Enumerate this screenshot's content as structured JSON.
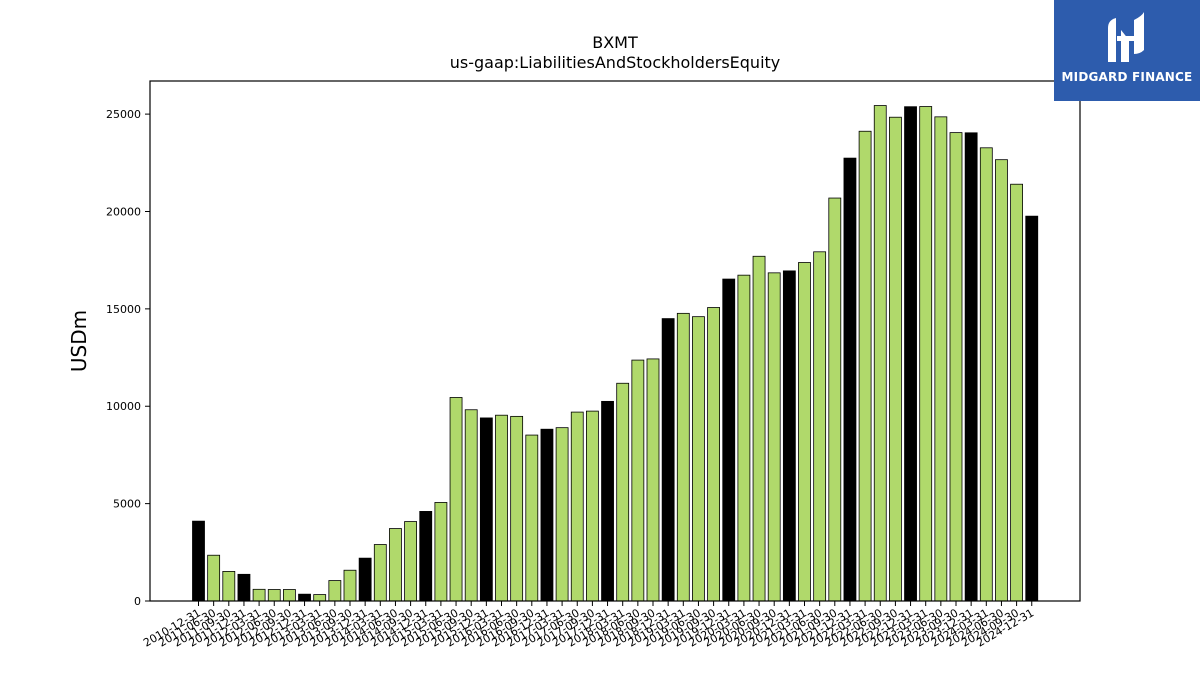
{
  "logo": {
    "text": "MIDGARD FINANCE",
    "icon": "midgard-logo-icon",
    "background": "#2d5cad"
  },
  "colors": {
    "green": "#b0d96b",
    "black": "#000000"
  },
  "chart_data": {
    "type": "bar",
    "title": "BXMT",
    "subtitle": "us-gaap:LiabilitiesAndStockholdersEquity",
    "xlabel": "",
    "ylabel": "USDm",
    "ylim": [
      0,
      26700
    ],
    "yticks": [
      0,
      5000,
      10000,
      15000,
      20000,
      25000
    ],
    "grid": false,
    "categories": [
      "2010-12-31",
      "2011-06-30",
      "2011-09-30",
      "2011-12-31",
      "2012-03-31",
      "2012-06-30",
      "2012-09-30",
      "2012-12-31",
      "2013-03-31",
      "2013-06-30",
      "2013-09-30",
      "2013-12-31",
      "2014-03-31",
      "2014-06-30",
      "2014-09-30",
      "2014-12-31",
      "2015-03-31",
      "2015-06-30",
      "2015-09-30",
      "2015-12-31",
      "2016-03-31",
      "2016-06-30",
      "2016-09-30",
      "2016-12-31",
      "2017-03-31",
      "2017-06-30",
      "2017-09-30",
      "2017-12-31",
      "2018-03-31",
      "2018-06-30",
      "2018-09-30",
      "2018-12-31",
      "2019-03-31",
      "2019-06-30",
      "2019-09-30",
      "2019-12-31",
      "2020-03-31",
      "2020-06-30",
      "2020-09-30",
      "2020-12-31",
      "2021-03-31",
      "2021-06-30",
      "2021-09-30",
      "2021-12-31",
      "2022-03-31",
      "2022-06-30",
      "2022-09-30",
      "2022-12-31",
      "2023-03-31",
      "2023-06-30",
      "2023-09-30",
      "2023-12-31",
      "2024-03-31",
      "2024-06-30",
      "2024-09-30",
      "2024-12-31"
    ],
    "values": [
      4100,
      2350,
      1520,
      1370,
      600,
      590,
      590,
      350,
      330,
      1050,
      1580,
      2200,
      2900,
      3720,
      4080,
      4600,
      5060,
      10450,
      9820,
      9400,
      9540,
      9480,
      8520,
      8820,
      8900,
      9700,
      9750,
      10250,
      11180,
      12370,
      12430,
      14500,
      14770,
      14600,
      15070,
      16530,
      16730,
      17700,
      16850,
      16950,
      17380,
      17930,
      20690,
      22740,
      24120,
      25440,
      24840,
      25380,
      25390,
      24860,
      24050,
      24040,
      23270,
      22660,
      21400,
      19760
    ],
    "year_end_color": "black",
    "other_color": "green"
  }
}
